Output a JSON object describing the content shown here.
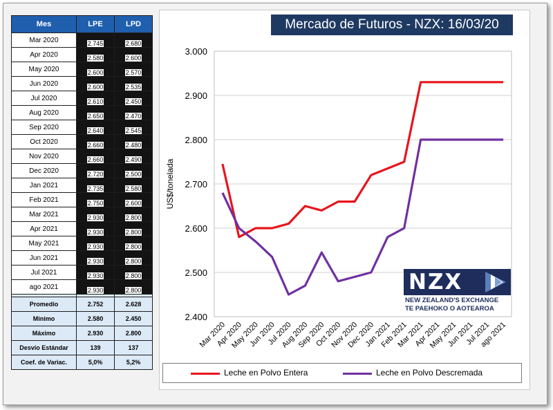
{
  "table": {
    "headers": [
      "Mes",
      "LPE",
      "LPD"
    ],
    "rows": [
      {
        "mes": "Mar 2020",
        "lpe": "2.745",
        "lpd": "2.680"
      },
      {
        "mes": "Apr 2020",
        "lpe": "2.580",
        "lpd": "2.600"
      },
      {
        "mes": "May 2020",
        "lpe": "2.600",
        "lpd": "2.570"
      },
      {
        "mes": "Jun 2020",
        "lpe": "2.600",
        "lpd": "2.535"
      },
      {
        "mes": "Jul 2020",
        "lpe": "2.610",
        "lpd": "2.450"
      },
      {
        "mes": "Aug 2020",
        "lpe": "2.650",
        "lpd": "2.470"
      },
      {
        "mes": "Sep 2020",
        "lpe": "2.640",
        "lpd": "2.545"
      },
      {
        "mes": "Oct 2020",
        "lpe": "2.660",
        "lpd": "2.480"
      },
      {
        "mes": "Nov 2020",
        "lpe": "2.660",
        "lpd": "2.490"
      },
      {
        "mes": "Dec 2020",
        "lpe": "2.720",
        "lpd": "2.500"
      },
      {
        "mes": "Jan 2021",
        "lpe": "2.735",
        "lpd": "2.580"
      },
      {
        "mes": "Feb 2021",
        "lpe": "2.750",
        "lpd": "2.600"
      },
      {
        "mes": "Mar 2021",
        "lpe": "2.930",
        "lpd": "2.800"
      },
      {
        "mes": "Apr 2021",
        "lpe": "2.930",
        "lpd": "2.800"
      },
      {
        "mes": "May 2021",
        "lpe": "2.930",
        "lpd": "2.800"
      },
      {
        "mes": "Jun 2021",
        "lpe": "2.930",
        "lpd": "2.800"
      },
      {
        "mes": "Jul 2021",
        "lpe": "2.930",
        "lpd": "2.800"
      },
      {
        "mes": "ago 2021",
        "lpe": "2.930",
        "lpd": "2.800"
      }
    ],
    "stats": [
      {
        "label": "Promedio",
        "lpe": "2.752",
        "lpd": "2.628"
      },
      {
        "label": "Mínimo",
        "lpe": "2.580",
        "lpd": "2.450"
      },
      {
        "label": "Máximo",
        "lpe": "2.930",
        "lpd": "2.800"
      },
      {
        "label": "Desvío Estándar",
        "lpe": "139",
        "lpd": "137"
      },
      {
        "label": "Coef. de Variac.",
        "lpe": "5,0%",
        "lpd": "5,2%"
      }
    ]
  },
  "chart_data": {
    "type": "line",
    "title": "Mercado de Futuros - NZX: 16/03/20",
    "xlabel": "",
    "ylabel": "US$/tonelada",
    "ylim": [
      2400,
      3000
    ],
    "yticks": [
      "2.400",
      "2.500",
      "2.600",
      "2.700",
      "2.800",
      "2.900",
      "3.000"
    ],
    "categories": [
      "Mar 2020",
      "Apr 2020",
      "May 2020",
      "Jun 2020",
      "Jul 2020",
      "Aug 2020",
      "Sep 2020",
      "Oct 2020",
      "Nov 2020",
      "Dec 2020",
      "Jan 2021",
      "Feb 2021",
      "Mar 2021",
      "Apr 2021",
      "May 2021",
      "Jun 2021",
      "Jul 2021",
      "ago 2021"
    ],
    "grid": "horizontal",
    "legend": "bottom",
    "series": [
      {
        "name": "Leche en Polvo Entera",
        "color": "#e8141c",
        "values": [
          2745,
          2580,
          2600,
          2600,
          2610,
          2650,
          2640,
          2660,
          2660,
          2720,
          2735,
          2750,
          2930,
          2930,
          2930,
          2930,
          2930,
          2930
        ]
      },
      {
        "name": "Leche en Polvo Descremada",
        "color": "#7030a0",
        "values": [
          2680,
          2600,
          2570,
          2535,
          2450,
          2470,
          2545,
          2480,
          2490,
          2500,
          2580,
          2600,
          2800,
          2800,
          2800,
          2800,
          2800,
          2800
        ]
      }
    ]
  },
  "logo": {
    "word": "NZX",
    "line1": "NEW ZEALAND'S EXCHANGE",
    "line2": "TE PAEHOKO O AOTEAROA",
    "color": "#1e2d5c"
  }
}
